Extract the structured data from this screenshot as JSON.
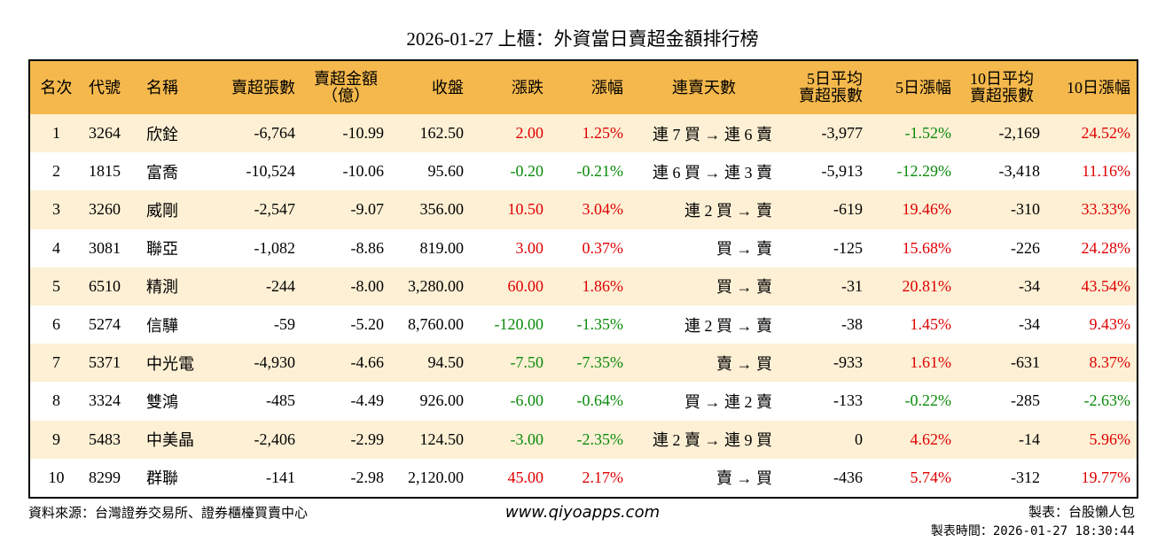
{
  "title": "2026-01-27 上櫃：外資當日賣超金額排行榜",
  "table": {
    "header": [
      [
        "名次"
      ],
      [
        "代號"
      ],
      [
        "名稱"
      ],
      [
        "賣超張數"
      ],
      [
        "賣超金額",
        "（億）"
      ],
      [
        "收盤"
      ],
      [
        "漲跌"
      ],
      [
        "漲幅"
      ],
      [
        "連賣天數"
      ],
      [
        "5日平均",
        "賣超張數"
      ],
      [
        "5日漲幅"
      ],
      [
        "10日平均",
        "賣超張數"
      ],
      [
        "10日漲幅"
      ]
    ],
    "rows": [
      [
        "1",
        "3264",
        "欣銓",
        "-6,764",
        "-10.99",
        "162.50",
        "2.00",
        "1.25%",
        "連 7 買 → 連 6 賣",
        "-3,977",
        "-1.52%",
        "-2,169",
        "24.52%"
      ],
      [
        "2",
        "1815",
        "富喬",
        "-10,524",
        "-10.06",
        "95.60",
        "-0.20",
        "-0.21%",
        "連 6 買 → 連 3 賣",
        "-5,913",
        "-12.29%",
        "-3,418",
        "11.16%"
      ],
      [
        "3",
        "3260",
        "威剛",
        "-2,547",
        "-9.07",
        "356.00",
        "10.50",
        "3.04%",
        "連 2 買 → 賣",
        "-619",
        "19.46%",
        "-310",
        "33.33%"
      ],
      [
        "4",
        "3081",
        "聯亞",
        "-1,082",
        "-8.86",
        "819.00",
        "3.00",
        "0.37%",
        "買 → 賣",
        "-125",
        "15.68%",
        "-226",
        "24.28%"
      ],
      [
        "5",
        "6510",
        "精測",
        "-244",
        "-8.00",
        "3,280.00",
        "60.00",
        "1.86%",
        "買 → 賣",
        "-31",
        "20.81%",
        "-34",
        "43.54%"
      ],
      [
        "6",
        "5274",
        "信驊",
        "-59",
        "-5.20",
        "8,760.00",
        "-120.00",
        "-1.35%",
        "連 2 買 → 賣",
        "-38",
        "1.45%",
        "-34",
        "9.43%"
      ],
      [
        "7",
        "5371",
        "中光電",
        "-4,930",
        "-4.66",
        "94.50",
        "-7.50",
        "-7.35%",
        "賣 → 買",
        "-933",
        "1.61%",
        "-631",
        "8.37%"
      ],
      [
        "8",
        "3324",
        "雙鴻",
        "-485",
        "-4.49",
        "926.00",
        "-6.00",
        "-0.64%",
        "買 → 連 2 賣",
        "-133",
        "-0.22%",
        "-285",
        "-2.63%"
      ],
      [
        "9",
        "5483",
        "中美晶",
        "-2,406",
        "-2.99",
        "124.50",
        "-3.00",
        "-2.35%",
        "連 2 賣 → 連 9 買",
        "0",
        "4.62%",
        "-14",
        "5.96%"
      ],
      [
        "10",
        "8299",
        "群聯",
        "-141",
        "-2.98",
        "2,120.00",
        "45.00",
        "2.17%",
        "賣 → 買",
        "-436",
        "5.74%",
        "-312",
        "19.77%"
      ]
    ]
  },
  "footer": {
    "source": "資料來源：台灣證券交易所、證券櫃檯買賣中心",
    "site": "www.qiyoapps.com",
    "maker": "製表：台股懶人包",
    "time": "製表時間：2026-01-27 18:30:44"
  }
}
